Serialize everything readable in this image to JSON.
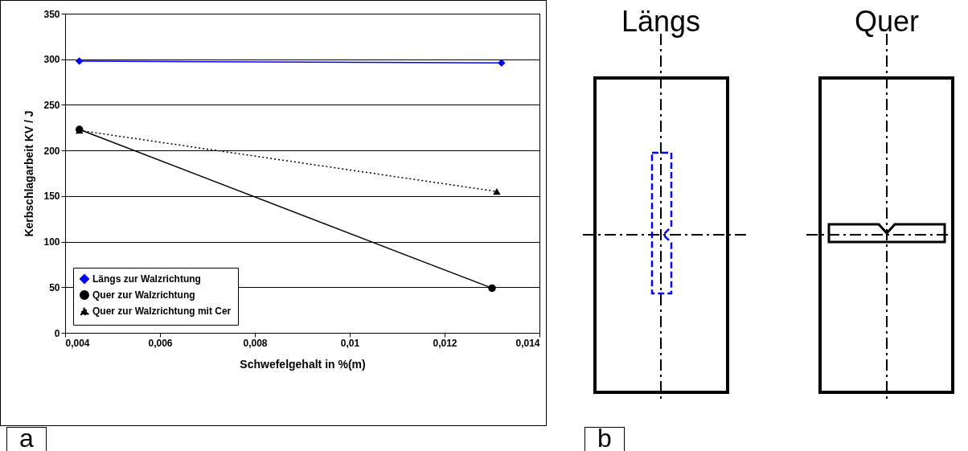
{
  "chart_data": {
    "type": "line",
    "xlabel": "Schwefelgehalt in %(m)",
    "ylabel": "Kerbschlagarbeit KV / J",
    "series": [
      {
        "name": "Längs zur Walzrichtung",
        "color": "#0000ff",
        "marker": "diamond",
        "line_style": "solid",
        "x": [
          0.0043,
          0.0132
        ],
        "values": [
          298,
          296
        ]
      },
      {
        "name": "Quer zur Walzrichtung",
        "color": "#000000",
        "marker": "circle",
        "line_style": "solid",
        "x": [
          0.0043,
          0.013
        ],
        "values": [
          223,
          49
        ]
      },
      {
        "name": "Quer zur Walzrichtung mit Cer",
        "color": "#000000",
        "marker": "triangle",
        "line_style": "dotted",
        "x": [
          0.0043,
          0.0131
        ],
        "values": [
          222,
          155
        ]
      }
    ],
    "xlim": [
      0.004,
      0.014
    ],
    "xticks": [
      {
        "value": 0.004,
        "label": "0,004"
      },
      {
        "value": 0.006,
        "label": "0,006"
      },
      {
        "value": 0.008,
        "label": "0,008"
      },
      {
        "value": 0.01,
        "label": "0,01"
      },
      {
        "value": 0.012,
        "label": "0,012"
      },
      {
        "value": 0.014,
        "label": "0,014"
      }
    ],
    "ylim": [
      0,
      350
    ],
    "yticks": [
      0,
      50,
      100,
      150,
      200,
      250,
      300,
      350
    ],
    "grid": "y",
    "legend": "bottom left",
    "annotations": [
      "a",
      "b",
      "Längs",
      "Quer"
    ]
  }
}
